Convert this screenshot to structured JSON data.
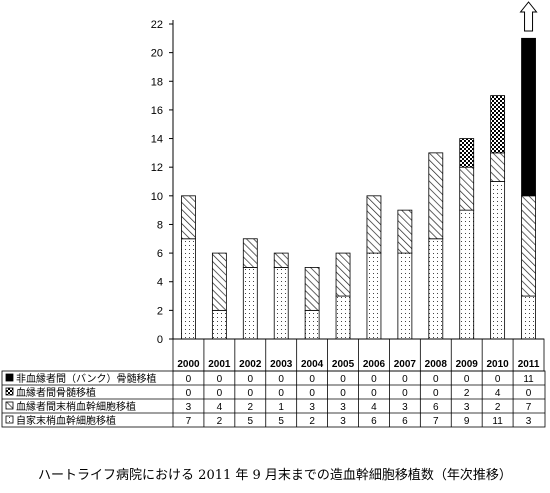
{
  "caption": "ハートライフ病院における 2011 年 9 月末までの造血幹細胞移植数（年次推移）",
  "chart_data": {
    "type": "bar",
    "stacked": true,
    "title": "",
    "xlabel": "",
    "ylabel": "",
    "ylim": [
      0,
      22
    ],
    "yticks": [
      "0",
      "2",
      "4",
      "6",
      "8",
      "10",
      "12",
      "14",
      "16",
      "18",
      "20",
      "22"
    ],
    "grid": false,
    "categories": [
      "2000",
      "2001",
      "2002",
      "2003",
      "2004",
      "2005",
      "2006",
      "2007",
      "2008",
      "2009",
      "2010",
      "2011"
    ],
    "legend_placement": "left of data table",
    "series": [
      {
        "name": "自家末梢血幹細胞移植",
        "pattern": "dotted",
        "values": [
          7,
          2,
          5,
          5,
          2,
          3,
          6,
          6,
          7,
          9,
          11,
          3
        ]
      },
      {
        "name": "血縁者間末梢血幹細胞移植",
        "pattern": "diagonal-hatch",
        "values": [
          3,
          4,
          2,
          1,
          3,
          3,
          4,
          3,
          6,
          3,
          2,
          7
        ]
      },
      {
        "name": "血縁者間骨髄移植",
        "pattern": "checkerboard",
        "values": [
          0,
          0,
          0,
          0,
          0,
          0,
          0,
          0,
          0,
          2,
          4,
          0
        ]
      },
      {
        "name": "非血縁者間（バンク）骨髄移植",
        "pattern": "solid-black",
        "values": [
          0,
          0,
          0,
          0,
          0,
          0,
          0,
          0,
          0,
          0,
          0,
          11
        ]
      }
    ],
    "table_row_order": [
      3,
      2,
      1,
      0
    ],
    "annotation": "up-arrow above 2011 bar (off scale)"
  }
}
